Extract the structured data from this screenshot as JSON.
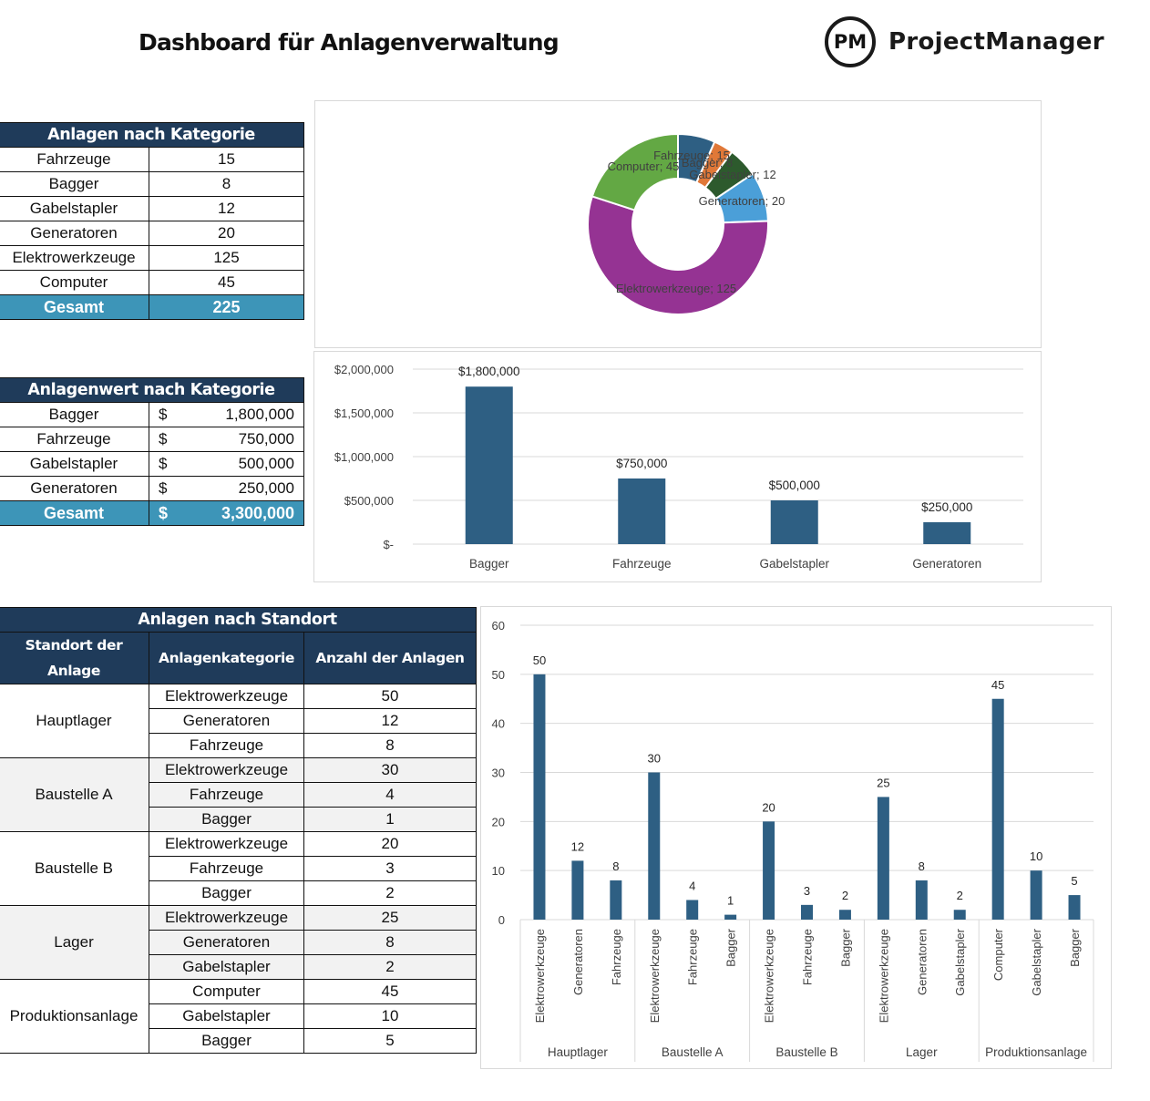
{
  "header": {
    "title": "Dashboard für Anlagenverwaltung",
    "logo_mark": "PM",
    "logo_text": "ProjectManager"
  },
  "assets_by_category": {
    "title": "Anlagen nach Kategorie",
    "rows": [
      {
        "label": "Fahrzeuge",
        "value": "15"
      },
      {
        "label": "Bagger",
        "value": "8"
      },
      {
        "label": "Gabelstapler",
        "value": "12"
      },
      {
        "label": "Generatoren",
        "value": "20"
      },
      {
        "label": "Elektrowerkzeuge",
        "value": "125"
      },
      {
        "label": "Computer",
        "value": "45"
      }
    ],
    "total_label": "Gesamt",
    "total_value": "225"
  },
  "value_by_category": {
    "title": "Anlagenwert nach Kategorie",
    "currency": "$",
    "rows": [
      {
        "label": "Bagger",
        "value": "1,800,000"
      },
      {
        "label": "Fahrzeuge",
        "value": "750,000"
      },
      {
        "label": "Gabelstapler",
        "value": "500,000"
      },
      {
        "label": "Generatoren",
        "value": "250,000"
      }
    ],
    "total_label": "Gesamt",
    "total_value": "3,300,000"
  },
  "assets_by_location": {
    "title": "Anlagen nach Standort",
    "col_location": "Standort der Anlage",
    "col_category": "Anlagenkategorie",
    "col_count": "Anzahl der Anlagen",
    "groups": [
      {
        "location": "Hauptlager",
        "rows": [
          {
            "category": "Elektrowerkzeuge",
            "count": "50"
          },
          {
            "category": "Generatoren",
            "count": "12"
          },
          {
            "category": "Fahrzeuge",
            "count": "8"
          }
        ]
      },
      {
        "location": "Baustelle A",
        "rows": [
          {
            "category": "Elektrowerkzeuge",
            "count": "30"
          },
          {
            "category": "Fahrzeuge",
            "count": "4"
          },
          {
            "category": "Bagger",
            "count": "1"
          }
        ]
      },
      {
        "location": "Baustelle B",
        "rows": [
          {
            "category": "Elektrowerkzeuge",
            "count": "20"
          },
          {
            "category": "Fahrzeuge",
            "count": "3"
          },
          {
            "category": "Bagger",
            "count": "2"
          }
        ]
      },
      {
        "location": "Lager",
        "rows": [
          {
            "category": "Elektrowerkzeuge",
            "count": "25"
          },
          {
            "category": "Generatoren",
            "count": "8"
          },
          {
            "category": "Gabelstapler",
            "count": "2"
          }
        ]
      },
      {
        "location": "Produktionsanlage",
        "rows": [
          {
            "category": "Computer",
            "count": "45"
          },
          {
            "category": "Gabelstapler",
            "count": "10"
          },
          {
            "category": "Bagger",
            "count": "5"
          }
        ]
      }
    ]
  },
  "chart_data": [
    {
      "type": "pie",
      "donut": true,
      "categories": [
        "Fahrzeuge",
        "Bagger",
        "Gabelstapler",
        "Generatoren",
        "Elektrowerkzeuge",
        "Computer"
      ],
      "values": [
        15,
        8,
        12,
        20,
        125,
        45
      ],
      "labels": [
        "Fahrzeuge; 15",
        "Bagger; 8",
        "Gabelstapler; 12",
        "Generatoren; 20",
        "Elektrowerkzeuge; 125",
        "Computer; 45"
      ],
      "colors": [
        "#2e5f83",
        "#e07838",
        "#2d5a2d",
        "#4b9fd8",
        "#953393",
        "#63a844"
      ]
    },
    {
      "type": "bar",
      "categories": [
        "Bagger",
        "Fahrzeuge",
        "Gabelstapler",
        "Generatoren"
      ],
      "values": [
        1800000,
        750000,
        500000,
        250000
      ],
      "data_labels": [
        "$1,800,000",
        "$750,000",
        "$500,000",
        "$250,000"
      ],
      "y_ticks": [
        0,
        500000,
        1000000,
        1500000,
        2000000
      ],
      "y_tick_labels": [
        "$-",
        "$500,000",
        "$1,000,000",
        "$1,500,000",
        "$2,000,000"
      ],
      "ylim": [
        0,
        2000000
      ],
      "grid": true,
      "color": "#2e5f83"
    },
    {
      "type": "bar",
      "groups": [
        {
          "name": "Hauptlager",
          "categories": [
            "Elektrowerkzeuge",
            "Generatoren",
            "Fahrzeuge"
          ],
          "values": [
            50,
            12,
            8
          ]
        },
        {
          "name": "Baustelle A",
          "categories": [
            "Elektrowerkzeuge",
            "Fahrzeuge",
            "Bagger"
          ],
          "values": [
            30,
            4,
            1
          ]
        },
        {
          "name": "Baustelle B",
          "categories": [
            "Elektrowerkzeuge",
            "Fahrzeuge",
            "Bagger"
          ],
          "values": [
            20,
            3,
            2
          ]
        },
        {
          "name": "Lager",
          "categories": [
            "Elektrowerkzeuge",
            "Generatoren",
            "Gabelstapler"
          ],
          "values": [
            25,
            8,
            2
          ]
        },
        {
          "name": "Produktionsanlage",
          "categories": [
            "Computer",
            "Gabelstapler",
            "Bagger"
          ],
          "values": [
            45,
            10,
            5
          ]
        }
      ],
      "y_ticks": [
        0,
        10,
        20,
        30,
        40,
        50,
        60
      ],
      "ylim": [
        0,
        60
      ],
      "grid": true,
      "color": "#2e5f83"
    }
  ]
}
